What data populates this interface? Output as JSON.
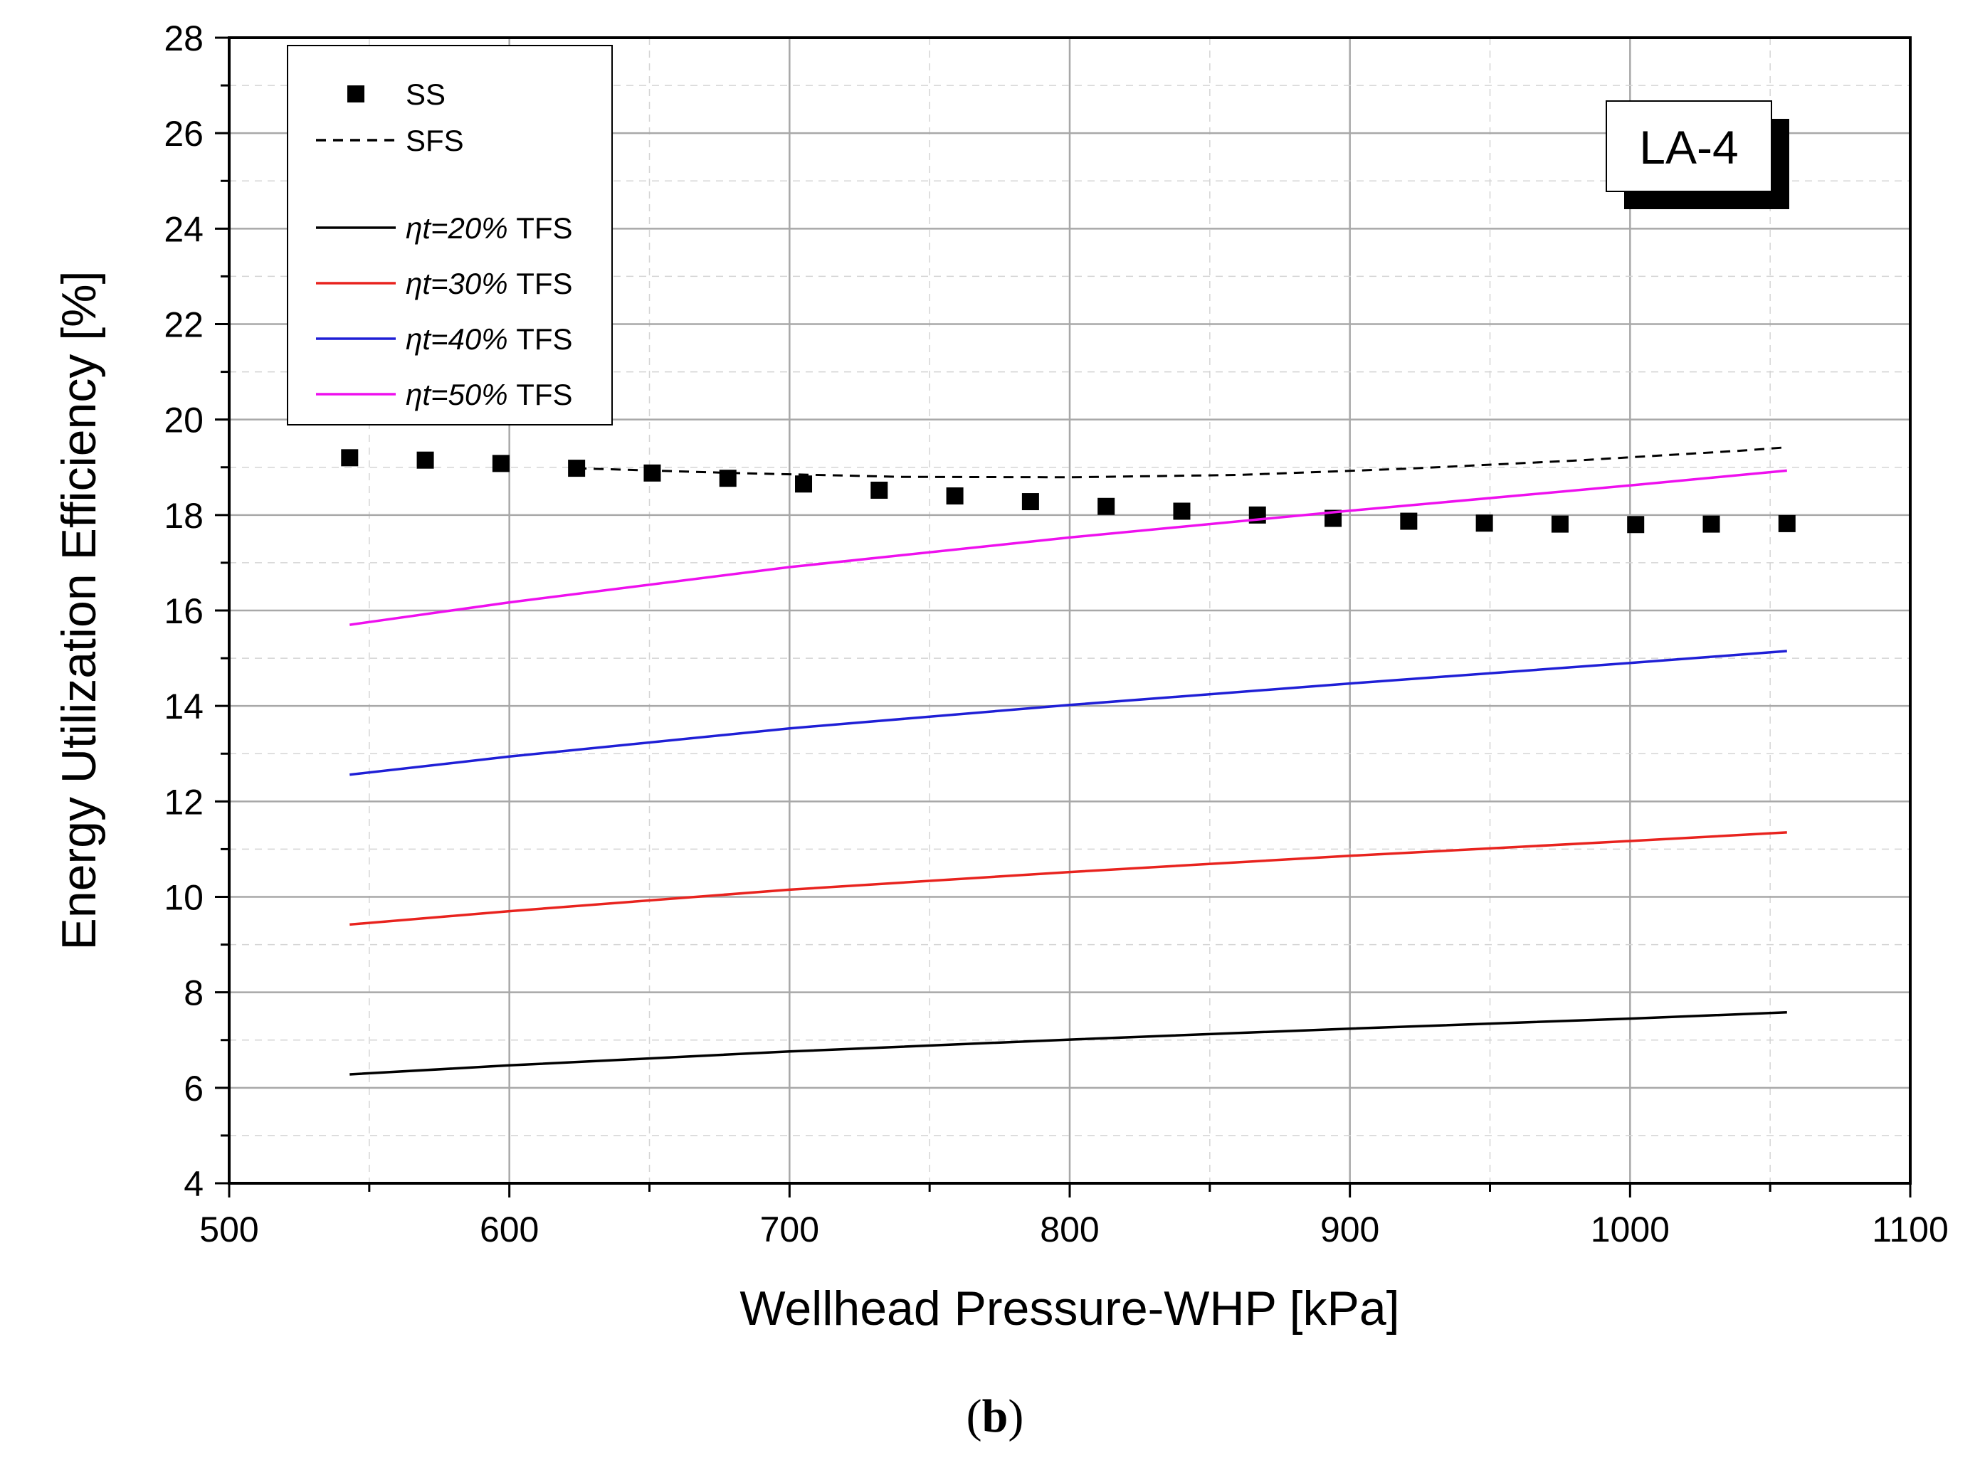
{
  "chart_data": {
    "type": "line",
    "xlabel": "Wellhead Pressure-WHP [kPa]",
    "ylabel": "Energy Utilization Efficiency [%]",
    "xlim": [
      500,
      1100
    ],
    "ylim": [
      4,
      28
    ],
    "x_ticks": [
      500,
      600,
      700,
      800,
      900,
      1000,
      1100
    ],
    "y_ticks": [
      4,
      6,
      8,
      10,
      12,
      14,
      16,
      18,
      20,
      22,
      24,
      26,
      28
    ],
    "grid": true,
    "legend_position": "top-left",
    "badge": "LA-4",
    "caption": {
      "open": "(",
      "letter": "b",
      "close": ")"
    },
    "series": [
      {
        "name": "SS",
        "style": "markers",
        "color": "#000000",
        "x": [
          543,
          570,
          597,
          624,
          651,
          678,
          705,
          732,
          759,
          786,
          813,
          840,
          867,
          894,
          921,
          948,
          975,
          1002,
          1029,
          1056
        ],
        "y": [
          19.2,
          19.15,
          19.08,
          18.98,
          18.88,
          18.77,
          18.65,
          18.52,
          18.4,
          18.28,
          18.18,
          18.08,
          18.0,
          17.93,
          17.87,
          17.83,
          17.81,
          17.8,
          17.81,
          17.82
        ]
      },
      {
        "name": "SFS",
        "style": "dashed",
        "color": "#000000",
        "x": [
          624,
          680,
          740,
          800,
          860,
          920,
          980,
          1040,
          1056
        ],
        "y": [
          18.98,
          18.88,
          18.8,
          18.79,
          18.84,
          18.97,
          19.14,
          19.35,
          19.42
        ]
      },
      {
        "name": "TFS 20%",
        "eta_label": "ηt=20%",
        "suffix": "TFS",
        "style": "solid",
        "color": "#000000",
        "x": [
          543,
          600,
          700,
          800,
          900,
          1000,
          1056
        ],
        "y": [
          6.28,
          6.47,
          6.76,
          7.01,
          7.24,
          7.45,
          7.58
        ]
      },
      {
        "name": "TFS 30%",
        "eta_label": "ηt=30%",
        "suffix": "TFS",
        "style": "solid",
        "color": "#e8231e",
        "x": [
          543,
          600,
          700,
          800,
          900,
          1000,
          1056
        ],
        "y": [
          9.42,
          9.7,
          10.15,
          10.52,
          10.86,
          11.17,
          11.35
        ]
      },
      {
        "name": "TFS 40%",
        "eta_label": "ηt=40%",
        "suffix": "TFS",
        "style": "solid",
        "color": "#1f1fd6",
        "x": [
          543,
          600,
          700,
          800,
          900,
          1000,
          1056
        ],
        "y": [
          12.56,
          12.94,
          13.53,
          14.02,
          14.47,
          14.9,
          15.15
        ]
      },
      {
        "name": "TFS 50%",
        "eta_label": "ηt=50%",
        "suffix": "TFS",
        "style": "solid",
        "color": "#ee10ee",
        "x": [
          543,
          600,
          700,
          800,
          900,
          1000,
          1056
        ],
        "y": [
          15.7,
          16.17,
          16.91,
          17.53,
          18.09,
          18.62,
          18.93
        ]
      }
    ]
  }
}
